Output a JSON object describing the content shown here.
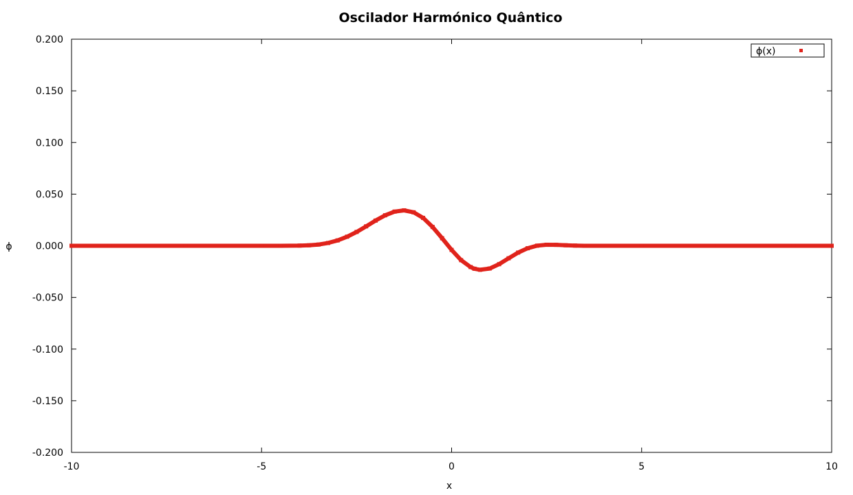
{
  "chart_data": {
    "type": "scatter",
    "title": "Oscilador Harmónico Quântico",
    "xlabel": "x",
    "ylabel": "ϕ",
    "xlim": [
      -10,
      10
    ],
    "ylim": [
      -0.2,
      0.2
    ],
    "xticks": [
      -10,
      -5,
      0,
      5,
      10
    ],
    "xtick_labels": [
      "-10",
      "-5",
      "0",
      "5",
      "10"
    ],
    "yticks": [
      -0.2,
      -0.15,
      -0.1,
      -0.05,
      0,
      0.05,
      0.1,
      0.15,
      0.2
    ],
    "ytick_labels": [
      "-0.200",
      "-0.150",
      "-0.100",
      "-0.050",
      "0.000",
      "0.050",
      "0.100",
      "0.150",
      "0.200"
    ],
    "grid": false,
    "legend_position": "top-right",
    "series": [
      {
        "name": "ϕ(x)",
        "color": "#e0231b",
        "points": [
          [
            -10,
            0
          ],
          [
            -9,
            0
          ],
          [
            -8,
            0
          ],
          [
            -7,
            0
          ],
          [
            -6,
            0
          ],
          [
            -5,
            0
          ],
          [
            -4.5,
            0
          ],
          [
            -4,
            0.0002
          ],
          [
            -3.75,
            0.0005
          ],
          [
            -3.5,
            0.0012
          ],
          [
            -3.25,
            0.0027
          ],
          [
            -3,
            0.0052
          ],
          [
            -2.75,
            0.0088
          ],
          [
            -2.5,
            0.0134
          ],
          [
            -2.25,
            0.0188
          ],
          [
            -2,
            0.0244
          ],
          [
            -1.75,
            0.0295
          ],
          [
            -1.5,
            0.0331
          ],
          [
            -1.25,
            0.0343
          ],
          [
            -1,
            0.0324
          ],
          [
            -0.75,
            0.027
          ],
          [
            -0.5,
            0.0182
          ],
          [
            -0.25,
            0.0073
          ],
          [
            0,
            -0.004
          ],
          [
            0.25,
            -0.0139
          ],
          [
            0.5,
            -0.0206
          ],
          [
            0.6,
            -0.0222
          ],
          [
            0.75,
            -0.0232
          ],
          [
            1,
            -0.022
          ],
          [
            1.25,
            -0.0178
          ],
          [
            1.5,
            -0.0121
          ],
          [
            1.75,
            -0.0066
          ],
          [
            2,
            -0.0024
          ],
          [
            2.25,
            0.0001
          ],
          [
            2.5,
            0.001
          ],
          [
            2.75,
            0.0009
          ],
          [
            3,
            0.0005
          ],
          [
            3.25,
            0.0002
          ],
          [
            3.5,
            0
          ],
          [
            4,
            0
          ],
          [
            5,
            0
          ],
          [
            6,
            0
          ],
          [
            7,
            0
          ],
          [
            8,
            0
          ],
          [
            9,
            0
          ],
          [
            10,
            0
          ]
        ]
      }
    ]
  }
}
